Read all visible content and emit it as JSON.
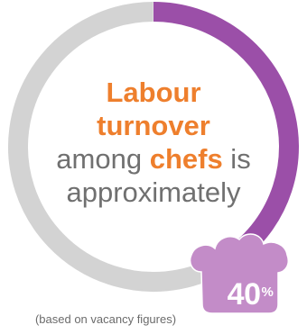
{
  "chart_data": {
    "type": "pie",
    "values": [
      40,
      60
    ],
    "value_label": "40",
    "value_unit": "%",
    "text": {
      "line1": "Labour",
      "line2": "turnover",
      "line3_part1": "among ",
      "line3_accent": "chefs",
      "line3_part2": " is",
      "line4": "approximately"
    },
    "footnote": "(based on vacancy figures)"
  },
  "colors": {
    "highlight": "#9b4fa8",
    "remainder": "#d3d3d3",
    "accent_text": "#ee7f2d",
    "body_text": "#707070",
    "badge": "#c38cc8"
  },
  "icons": {
    "badge": "chef-hat-icon"
  }
}
